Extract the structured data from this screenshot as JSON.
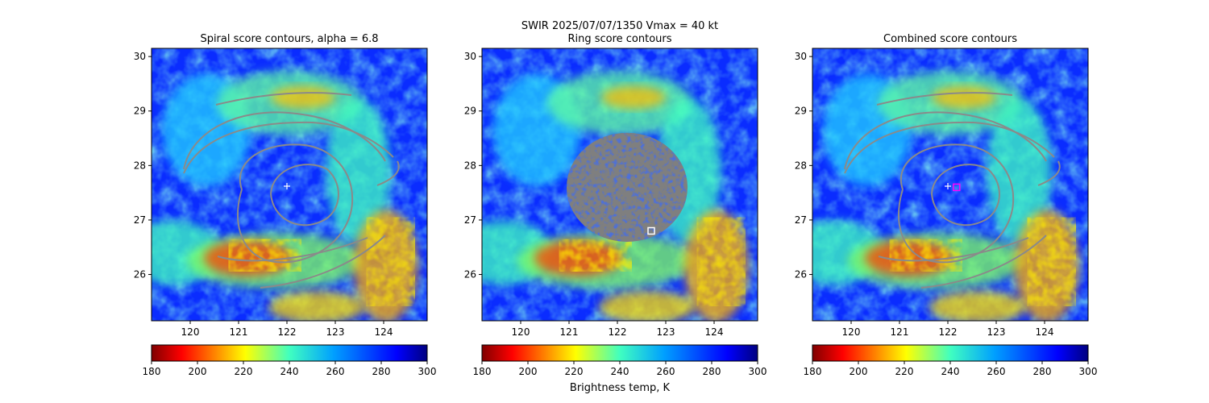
{
  "figure": {
    "suptitle_line1": "SWIR  2025/07/07/1350    Vmax = 40 kt",
    "colorbar_label": "Brightness temp, K"
  },
  "chart_data": [
    {
      "type": "heatmap",
      "title": "Spiral score contours, alpha =  6.8",
      "xlim": [
        119.2,
        124.9
      ],
      "ylim": [
        25.15,
        30.15
      ],
      "xticks": [
        120,
        121,
        122,
        123,
        124
      ],
      "yticks": [
        26,
        27,
        28,
        29,
        30
      ],
      "colorbar": {
        "min": 180,
        "max": 300,
        "ticks": [
          180,
          200,
          220,
          240,
          260,
          280,
          300
        ],
        "cmap": "jet_r"
      },
      "markers": [
        {
          "kind": "plus",
          "x": 122.0,
          "y": 27.62,
          "color": "#ffffff"
        }
      ],
      "overlay": "spiral-contours"
    },
    {
      "type": "heatmap",
      "title": "Ring score contours",
      "xlim": [
        119.2,
        124.9
      ],
      "ylim": [
        25.15,
        30.15
      ],
      "xticks": [
        120,
        121,
        122,
        123,
        124
      ],
      "yticks": [
        26,
        27,
        28,
        29,
        30
      ],
      "colorbar": {
        "min": 180,
        "max": 300,
        "ticks": [
          180,
          200,
          220,
          240,
          260,
          280,
          300
        ],
        "cmap": "jet_r"
      },
      "markers": [
        {
          "kind": "square",
          "x": 122.7,
          "y": 26.8,
          "color": "#ffffff"
        }
      ],
      "overlay": "ring-mask"
    },
    {
      "type": "heatmap",
      "title": "Combined score contours",
      "xlim": [
        119.2,
        124.9
      ],
      "ylim": [
        25.15,
        30.15
      ],
      "xticks": [
        120,
        121,
        122,
        123,
        124
      ],
      "yticks": [
        26,
        27,
        28,
        29,
        30
      ],
      "colorbar": {
        "min": 180,
        "max": 300,
        "ticks": [
          180,
          200,
          220,
          240,
          260,
          280,
          300
        ],
        "cmap": "jet_r"
      },
      "markers": [
        {
          "kind": "plus",
          "x": 122.0,
          "y": 27.62,
          "color": "#ffffff"
        },
        {
          "kind": "square",
          "x": 122.18,
          "y": 27.6,
          "color": "#ff00ff"
        }
      ],
      "overlay": "spiral-contours"
    }
  ]
}
